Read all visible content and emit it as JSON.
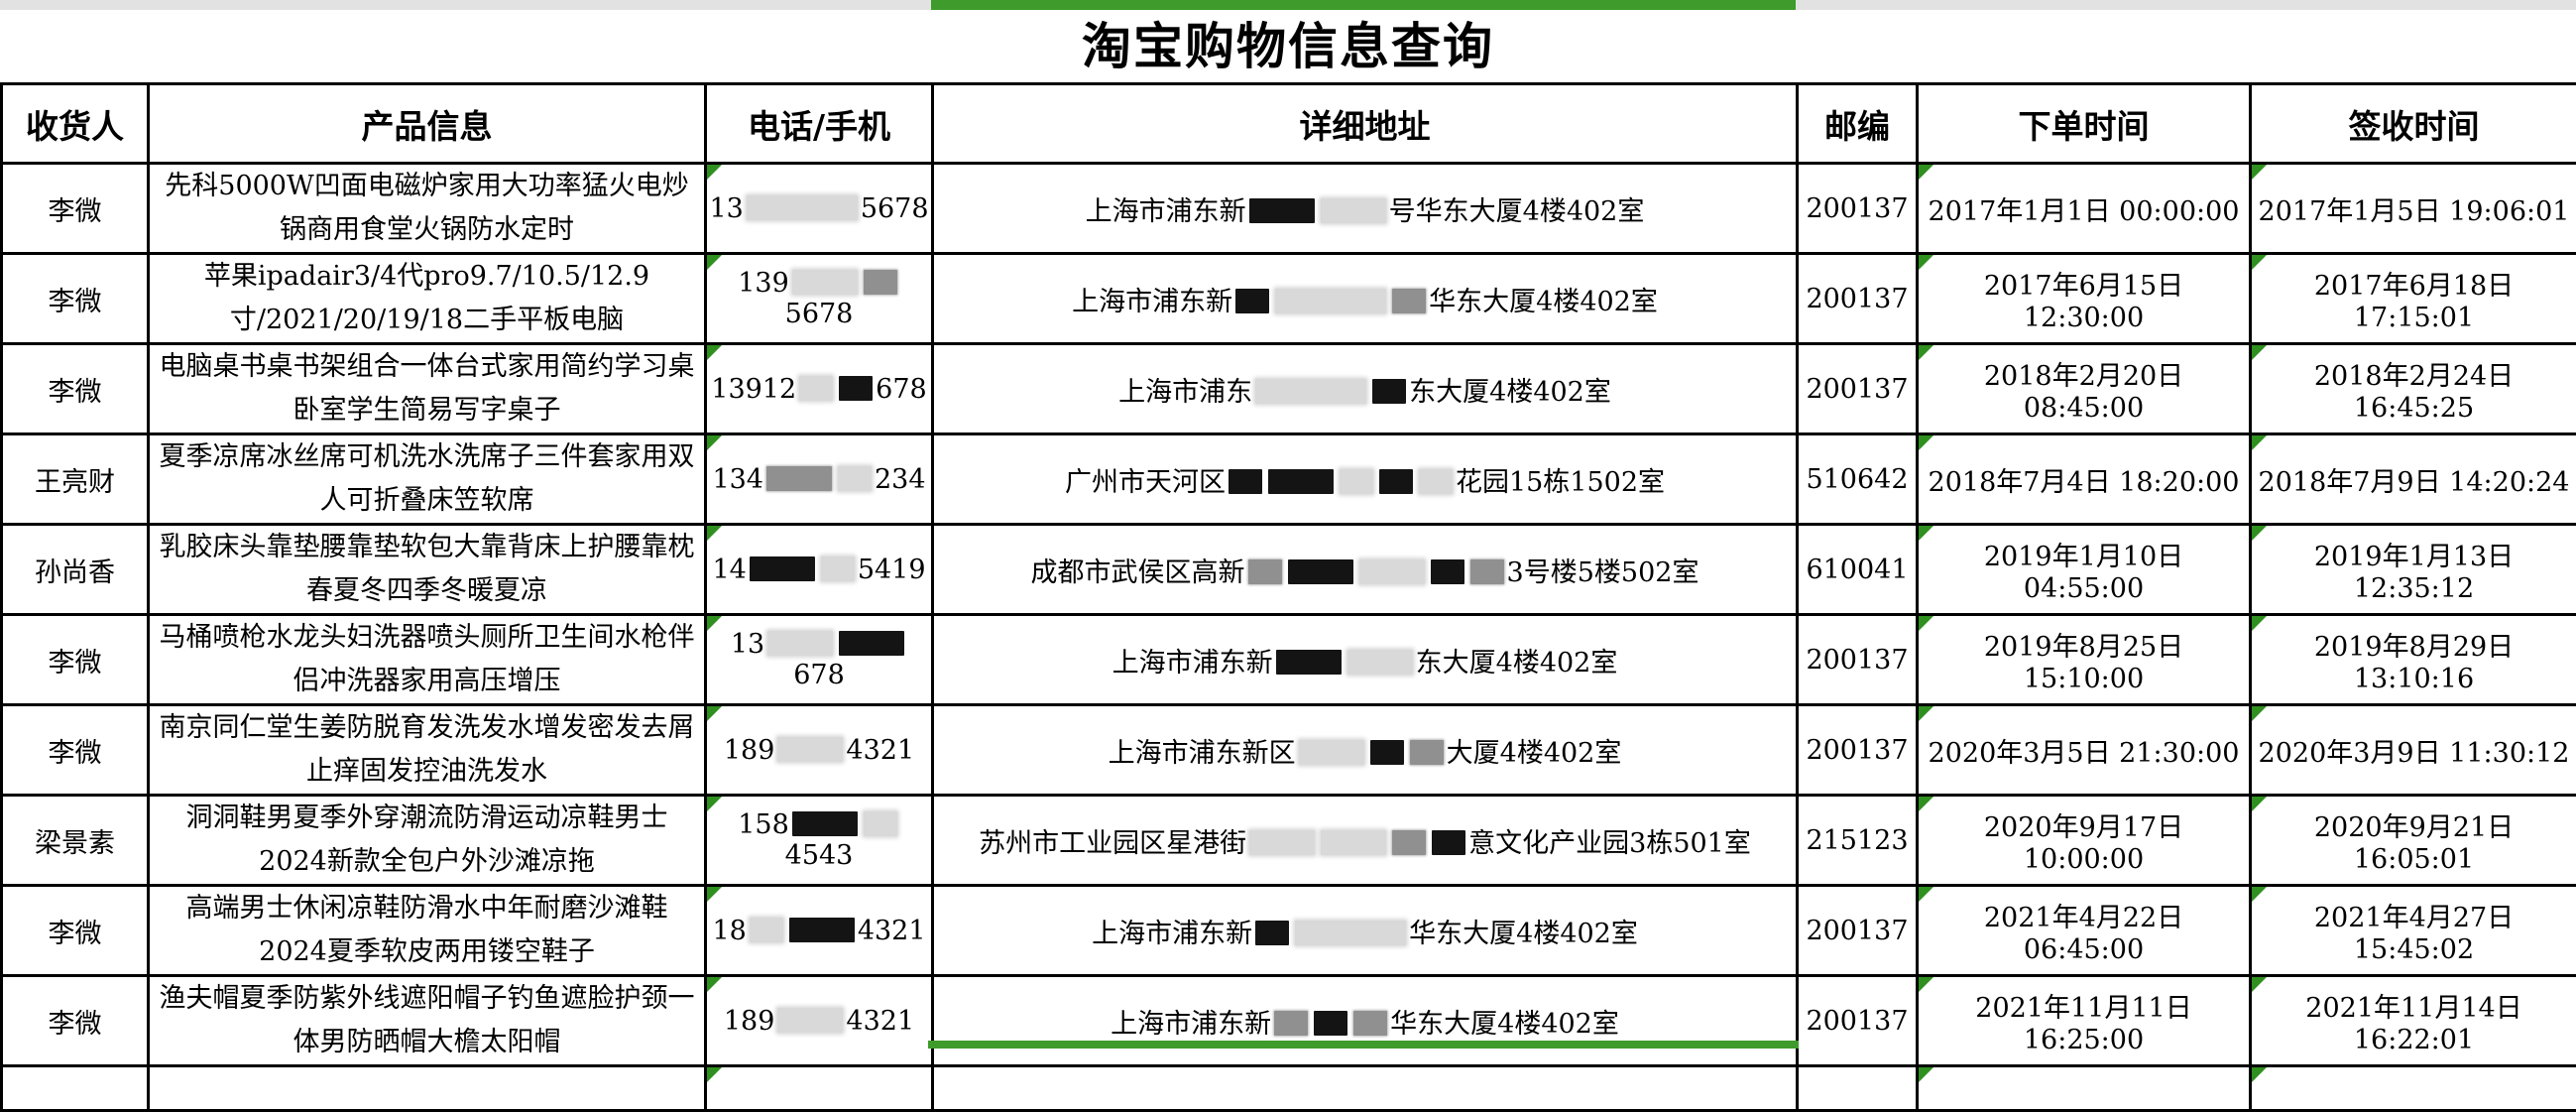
{
  "title": "淘宝购物信息查询",
  "columns": [
    "收货人",
    "产品信息",
    "电话/手机",
    "详细地址",
    "邮编",
    "下单时间",
    "签收时间"
  ],
  "colors": {
    "selection_green": "#3f9b2b",
    "triangle_green": "#2f8f1f",
    "grid_black": "#000000",
    "strip_gray": "#e2e2e2",
    "redact_light": "#d9d9d9",
    "redact_gray": "#909090",
    "redact_dark": "#141414"
  },
  "selection": {
    "column": "详细地址",
    "note": "green selection border on partial bottom row and column strip at top"
  },
  "rows": [
    {
      "recipient": "李微",
      "product": "先科5000W凹面电磁炉家用大功率猛火电炒锅商用食堂火锅防水定时",
      "phone": [
        {
          "text": "13"
        },
        {
          "redact": "light",
          "size": "l"
        },
        {
          "text": "5678"
        }
      ],
      "address": [
        {
          "text": "上海市浦东新"
        },
        {
          "redact": "dark",
          "size": "m"
        },
        {
          "redact": "light",
          "size": "m"
        },
        {
          "text": "号华东大厦4楼402室"
        }
      ],
      "zip": "200137",
      "order_time": "2017年1月1日 00:00:00",
      "sign_time": "2017年1月5日 19:06:01"
    },
    {
      "recipient": "李微",
      "product": "苹果ipadair3/4代pro9.7/10.5/12.9寸/2021/20/19/18二手平板电脑",
      "phone": [
        {
          "text": "139"
        },
        {
          "redact": "light",
          "size": "m"
        },
        {
          "redact": "gray",
          "size": "s"
        },
        {
          "text": "5678"
        }
      ],
      "address": [
        {
          "text": "上海市浦东新"
        },
        {
          "redact": "dark",
          "size": "s"
        },
        {
          "redact": "light",
          "size": "l"
        },
        {
          "redact": "gray",
          "size": "s"
        },
        {
          "text": "华东大厦4楼402室"
        }
      ],
      "zip": "200137",
      "order_time": "2017年6月15日 12:30:00",
      "sign_time": "2017年6月18日 17:15:01"
    },
    {
      "recipient": "李微",
      "product": "电脑桌书桌书架组合一体台式家用简约学习桌卧室学生简易写字桌子",
      "phone": [
        {
          "text": "13912"
        },
        {
          "redact": "light",
          "size": "s"
        },
        {
          "redact": "dark",
          "size": "s"
        },
        {
          "text": "678"
        }
      ],
      "address": [
        {
          "text": "上海市浦东"
        },
        {
          "redact": "light",
          "size": "l"
        },
        {
          "redact": "dark",
          "size": "s"
        },
        {
          "text": "东大厦4楼402室"
        }
      ],
      "zip": "200137",
      "order_time": "2018年2月20日 08:45:00",
      "sign_time": "2018年2月24日 16:45:25"
    },
    {
      "recipient": "王亮财",
      "product": "夏季凉席冰丝席可机洗水洗席子三件套家用双人可折叠床笠软席",
      "phone": [
        {
          "text": "134"
        },
        {
          "redact": "gray",
          "size": "m"
        },
        {
          "redact": "light",
          "size": "s"
        },
        {
          "text": "234"
        }
      ],
      "address": [
        {
          "text": "广州市天河区"
        },
        {
          "redact": "dark",
          "size": "s"
        },
        {
          "redact": "dark",
          "size": "m"
        },
        {
          "redact": "light",
          "size": "s"
        },
        {
          "redact": "dark",
          "size": "s"
        },
        {
          "redact": "light",
          "size": "s"
        },
        {
          "text": "花园15栋1502室"
        }
      ],
      "zip": "510642",
      "order_time": "2018年7月4日 18:20:00",
      "sign_time": "2018年7月9日 14:20:24"
    },
    {
      "recipient": "孙尚香",
      "product": "乳胶床头靠垫腰靠垫软包大靠背床上护腰靠枕春夏冬四季冬暖夏凉",
      "phone": [
        {
          "text": "14"
        },
        {
          "redact": "dark",
          "size": "m"
        },
        {
          "redact": "light",
          "size": "s"
        },
        {
          "text": "5419"
        }
      ],
      "address": [
        {
          "text": "成都市武侯区高新"
        },
        {
          "redact": "gray",
          "size": "s"
        },
        {
          "redact": "dark",
          "size": "m"
        },
        {
          "redact": "light",
          "size": "m"
        },
        {
          "redact": "dark",
          "size": "s"
        },
        {
          "redact": "gray",
          "size": "s"
        },
        {
          "text": "3号楼5楼502室"
        }
      ],
      "zip": "610041",
      "order_time": "2019年1月10日 04:55:00",
      "sign_time": "2019年1月13日 12:35:12"
    },
    {
      "recipient": "李微",
      "product": "马桶喷枪水龙头妇洗器喷头厕所卫生间水枪伴侣冲洗器家用高压增压",
      "phone": [
        {
          "text": "13"
        },
        {
          "redact": "light",
          "size": "m"
        },
        {
          "redact": "dark",
          "size": "m"
        },
        {
          "text": "678"
        }
      ],
      "address": [
        {
          "text": "上海市浦东新"
        },
        {
          "redact": "dark",
          "size": "m"
        },
        {
          "redact": "light",
          "size": "m"
        },
        {
          "text": "东大厦4楼402室"
        }
      ],
      "zip": "200137",
      "order_time": "2019年8月25日 15:10:00",
      "sign_time": "2019年8月29日 13:10:16"
    },
    {
      "recipient": "李微",
      "product": "南京同仁堂生姜防脱育发洗发水增发密发去屑止痒固发控油洗发水",
      "phone": [
        {
          "text": "189"
        },
        {
          "redact": "light",
          "size": "m"
        },
        {
          "text": "4321"
        }
      ],
      "address": [
        {
          "text": "上海市浦东新区"
        },
        {
          "redact": "light",
          "size": "m"
        },
        {
          "redact": "dark",
          "size": "s"
        },
        {
          "redact": "gray",
          "size": "s"
        },
        {
          "text": "大厦4楼402室"
        }
      ],
      "zip": "200137",
      "order_time": "2020年3月5日 21:30:00",
      "sign_time": "2020年3月9日 11:30:12"
    },
    {
      "recipient": "梁景素",
      "product": "洞洞鞋男夏季外穿潮流防滑运动凉鞋男士2024新款全包户外沙滩凉拖",
      "phone": [
        {
          "text": "158"
        },
        {
          "redact": "dark",
          "size": "m"
        },
        {
          "redact": "light",
          "size": "s"
        },
        {
          "text": "4543"
        }
      ],
      "address": [
        {
          "text": "苏州市工业园区星港街"
        },
        {
          "redact": "light",
          "size": "m"
        },
        {
          "redact": "light",
          "size": "m"
        },
        {
          "redact": "gray",
          "size": "s"
        },
        {
          "redact": "dark",
          "size": "s"
        },
        {
          "text": "意文化产业园3栋501室"
        }
      ],
      "zip": "215123",
      "order_time": "2020年9月17日 10:00:00",
      "sign_time": "2020年9月21日 16:05:01"
    },
    {
      "recipient": "李微",
      "product": "高端男士休闲凉鞋防滑水中年耐磨沙滩鞋2024夏季软皮两用镂空鞋子",
      "phone": [
        {
          "text": "18"
        },
        {
          "redact": "light",
          "size": "s"
        },
        {
          "redact": "dark",
          "size": "m"
        },
        {
          "text": "4321"
        }
      ],
      "address": [
        {
          "text": "上海市浦东新"
        },
        {
          "redact": "dark",
          "size": "s"
        },
        {
          "redact": "light",
          "size": "l"
        },
        {
          "text": "华东大厦4楼402室"
        }
      ],
      "zip": "200137",
      "order_time": "2021年4月22日 06:45:00",
      "sign_time": "2021年4月27日 15:45:02"
    },
    {
      "recipient": "李微",
      "product": "渔夫帽夏季防紫外线遮阳帽子钓鱼遮脸护颈一体男防晒帽大檐太阳帽",
      "phone": [
        {
          "text": "189"
        },
        {
          "redact": "light",
          "size": "m"
        },
        {
          "text": "4321"
        }
      ],
      "address": [
        {
          "text": "上海市浦东新"
        },
        {
          "redact": "gray",
          "size": "s"
        },
        {
          "redact": "dark",
          "size": "s"
        },
        {
          "redact": "gray",
          "size": "s"
        },
        {
          "text": "华东大厦4楼402室"
        }
      ],
      "zip": "200137",
      "order_time": "2021年11月11日 16:25:00",
      "sign_time": "2021年11月14日 16:22:01"
    }
  ],
  "partial_row": {
    "visible": true
  }
}
